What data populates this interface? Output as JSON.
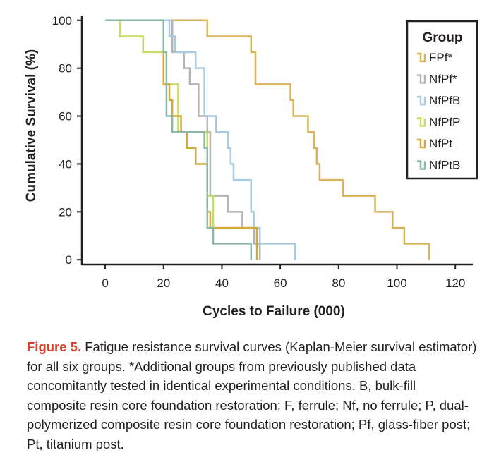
{
  "chart_data": {
    "type": "line",
    "step": true,
    "xlabel": "Cycles to Failure (000)",
    "ylabel": "Cumulative Survival (%)",
    "xlim": [
      -8,
      126
    ],
    "ylim": [
      -2,
      102
    ],
    "xticks": [
      0,
      20,
      40,
      60,
      80,
      100,
      120
    ],
    "yticks": [
      0,
      20,
      40,
      60,
      80,
      100
    ],
    "legend": {
      "title": "Group",
      "position": "top-right"
    },
    "series": [
      {
        "name": "FPf*",
        "color": "#d9b35a",
        "x": [
          20,
          35,
          50,
          51.5,
          63.5,
          64.5,
          69.5,
          71.5,
          72.5,
          73.5,
          81.5,
          92.5,
          98.5,
          102.5,
          111
        ],
        "y": [
          100,
          93.3,
          86.7,
          73.3,
          66.7,
          60,
          53.3,
          46.7,
          40,
          33.3,
          26.7,
          20,
          13.3,
          6.7,
          0
        ]
      },
      {
        "name": "NfPf*",
        "color": "#b6b3b3",
        "x": [
          21,
          23,
          27,
          29,
          32,
          35,
          36,
          42,
          47,
          51,
          53
        ],
        "y": [
          100,
          86.7,
          80,
          73.3,
          60,
          53.3,
          26.7,
          20,
          13.3,
          6.7,
          0
        ]
      },
      {
        "name": "NfPfB",
        "color": "#a9cbe0",
        "x": [
          20,
          22,
          24,
          31,
          34,
          38,
          42,
          43,
          44,
          50,
          51,
          53,
          65
        ],
        "y": [
          100,
          93.3,
          86.7,
          80,
          60,
          53.3,
          46.7,
          40,
          33.3,
          20,
          13.3,
          6.7,
          0
        ]
      },
      {
        "name": "NfPfP",
        "color": "#c8dc62",
        "x": [
          5,
          13,
          20,
          25,
          35,
          37,
          52
        ],
        "y": [
          93.3,
          86.7,
          73.3,
          53.3,
          26.7,
          13.3,
          0
        ]
      },
      {
        "name": "NfPt",
        "color": "#d4a93a",
        "x": [
          20,
          22,
          23,
          26,
          28,
          31,
          35,
          36,
          52
        ],
        "y": [
          73.3,
          66.7,
          60,
          53.3,
          46.7,
          40,
          20,
          13.3,
          0
        ]
      },
      {
        "name": "NfPtB",
        "color": "#8ab9a6",
        "x": [
          20,
          21,
          23,
          34,
          35,
          37,
          50
        ],
        "y": [
          86.7,
          60,
          53.3,
          46.7,
          13.3,
          6.7,
          0
        ]
      }
    ]
  },
  "caption": {
    "figure_label": "Figure 5.",
    "text": " Fatigue resistance survival curves (Kaplan-Meier survival estimator) for all six groups. *Additional groups from previously published data concomitantly tested in identical experimental conditions. B, bulk-fill composite resin core foundation restoration; F, ferrule; Nf, no ferrule; P, dual-polymerized composite resin core foundation restoration; Pf, glass-fiber post; Pt, titanium post."
  }
}
